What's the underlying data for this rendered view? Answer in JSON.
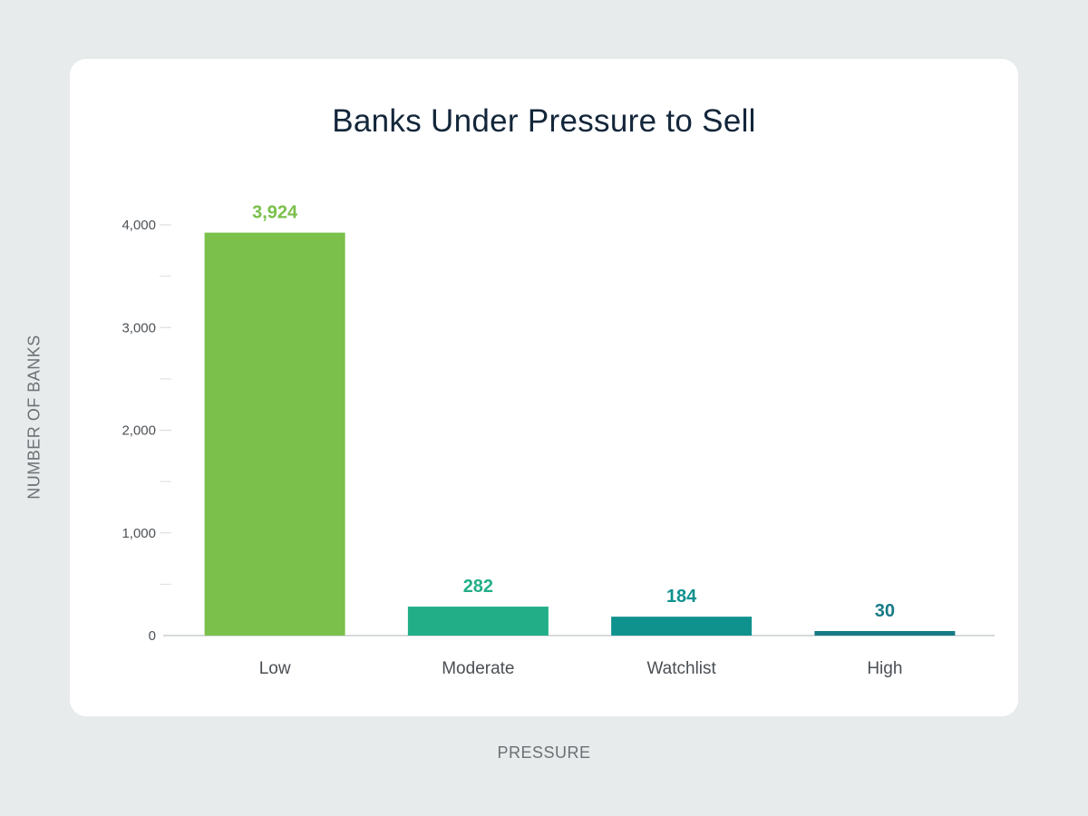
{
  "chart_data": {
    "type": "bar",
    "title": "Banks Under Pressure to Sell",
    "xlabel": "PRESSURE",
    "ylabel": "NUMBER OF BANKS",
    "categories": [
      "Low",
      "Moderate",
      "Watchlist",
      "High"
    ],
    "values": [
      3924,
      282,
      184,
      30
    ],
    "value_labels": [
      "3,924",
      "282",
      "184",
      "30"
    ],
    "colors": [
      "#7ac04a",
      "#22af88",
      "#0f918e",
      "#167a86"
    ],
    "ylim": [
      0,
      4000
    ],
    "yticks": [
      0,
      1000,
      2000,
      3000,
      4000
    ],
    "ytick_labels": [
      "0",
      "1,000",
      "2,000",
      "3,000",
      "4,000"
    ],
    "grid": false
  }
}
